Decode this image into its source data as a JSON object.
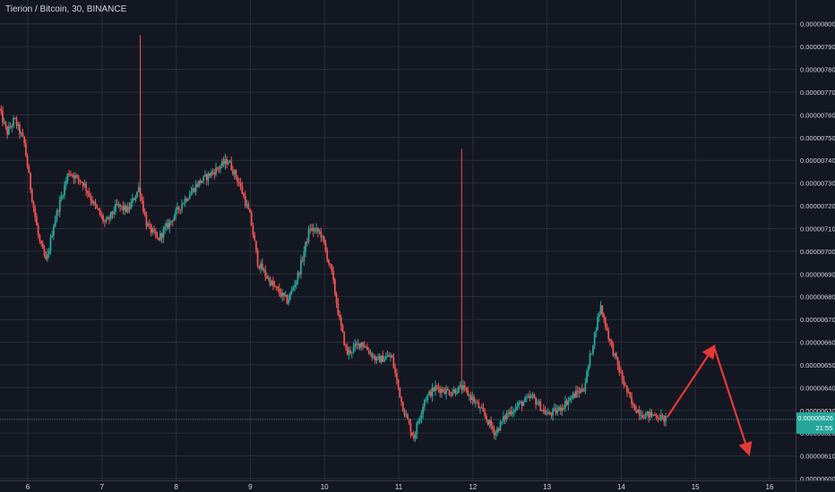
{
  "header": {
    "title": "Tierion / Bitcoin, 30, BINANCE"
  },
  "price_badge": {
    "price": "0.00000626",
    "countdown": "21:55"
  },
  "colors": {
    "background": "#131722",
    "up": "#26a69a",
    "down": "#ef5350",
    "arrow": "#e53935",
    "badge": "#26a69a"
  },
  "chart_data": {
    "type": "candlestick",
    "title": "Tierion / Bitcoin, 30, BINANCE",
    "y_ticks": [
      "0.00000800",
      "0.00000790",
      "0.00000780",
      "0.00000770",
      "0.00000760",
      "0.00000750",
      "0.00000740",
      "0.00000730",
      "0.00000720",
      "0.00000710",
      "0.00000700",
      "0.00000690",
      "0.00000680",
      "0.00000670",
      "0.00000660",
      "0.00000650",
      "0.00000640",
      "0.00000630",
      "0.00000620",
      "0.00000610",
      "0.00000600"
    ],
    "x_ticks": [
      "6",
      "7",
      "8",
      "9",
      "10",
      "11",
      "12",
      "13",
      "14",
      "15",
      "16"
    ],
    "ylim": [
      6e-06,
      8.05e-06
    ],
    "xlim": [
      5.62,
      16.6
    ],
    "current_price": 6.26e-06,
    "grid": true,
    "projection_arrows": [
      {
        "from": [
          14.62,
          6.27e-06
        ],
        "to": [
          15.25,
          6.58e-06
        ]
      },
      {
        "from": [
          15.25,
          6.58e-06
        ],
        "to": [
          15.72,
          6.11e-06
        ]
      }
    ],
    "trend_path": [
      [
        5.62,
        7.62e-06
      ],
      [
        5.72,
        7.52e-06
      ],
      [
        5.82,
        7.58e-06
      ],
      [
        5.95,
        7.48e-06
      ],
      [
        6.05,
        7.25e-06
      ],
      [
        6.15,
        7.05e-06
      ],
      [
        6.25,
        6.95e-06
      ],
      [
        6.35,
        7.12e-06
      ],
      [
        6.55,
        7.35e-06
      ],
      [
        6.75,
        7.3e-06
      ],
      [
        6.9,
        7.2e-06
      ],
      [
        7.05,
        7.12e-06
      ],
      [
        7.2,
        7.2e-06
      ],
      [
        7.35,
        7.18e-06
      ],
      [
        7.5,
        7.28e-06
      ],
      [
        7.6,
        7.12e-06
      ],
      [
        7.75,
        7.05e-06
      ],
      [
        7.9,
        7.12e-06
      ],
      [
        8.1,
        7.22e-06
      ],
      [
        8.3,
        7.3e-06
      ],
      [
        8.5,
        7.35e-06
      ],
      [
        8.7,
        7.4e-06
      ],
      [
        8.85,
        7.3e-06
      ],
      [
        9.0,
        7.15e-06
      ],
      [
        9.1,
        6.95e-06
      ],
      [
        9.3,
        6.85e-06
      ],
      [
        9.5,
        6.78e-06
      ],
      [
        9.65,
        6.9e-06
      ],
      [
        9.8,
        7.1e-06
      ],
      [
        9.95,
        7.08e-06
      ],
      [
        10.1,
        6.9e-06
      ],
      [
        10.2,
        6.7e-06
      ],
      [
        10.3,
        6.55e-06
      ],
      [
        10.5,
        6.6e-06
      ],
      [
        10.7,
        6.52e-06
      ],
      [
        10.9,
        6.54e-06
      ],
      [
        11.05,
        6.32e-06
      ],
      [
        11.2,
        6.18e-06
      ],
      [
        11.35,
        6.35e-06
      ],
      [
        11.5,
        6.4e-06
      ],
      [
        11.7,
        6.38e-06
      ],
      [
        11.85,
        6.4e-06
      ],
      [
        12.0,
        6.35e-06
      ],
      [
        12.15,
        6.28e-06
      ],
      [
        12.3,
        6.2e-06
      ],
      [
        12.45,
        6.28e-06
      ],
      [
        12.6,
        6.32e-06
      ],
      [
        12.8,
        6.36e-06
      ],
      [
        13.0,
        6.28e-06
      ],
      [
        13.15,
        6.3e-06
      ],
      [
        13.3,
        6.35e-06
      ],
      [
        13.5,
        6.4e-06
      ],
      [
        13.65,
        6.65e-06
      ],
      [
        13.72,
        6.76e-06
      ],
      [
        13.85,
        6.6e-06
      ],
      [
        14.0,
        6.45e-06
      ],
      [
        14.15,
        6.32e-06
      ],
      [
        14.3,
        6.28e-06
      ],
      [
        14.45,
        6.28e-06
      ],
      [
        14.6,
        6.26e-06
      ]
    ]
  }
}
